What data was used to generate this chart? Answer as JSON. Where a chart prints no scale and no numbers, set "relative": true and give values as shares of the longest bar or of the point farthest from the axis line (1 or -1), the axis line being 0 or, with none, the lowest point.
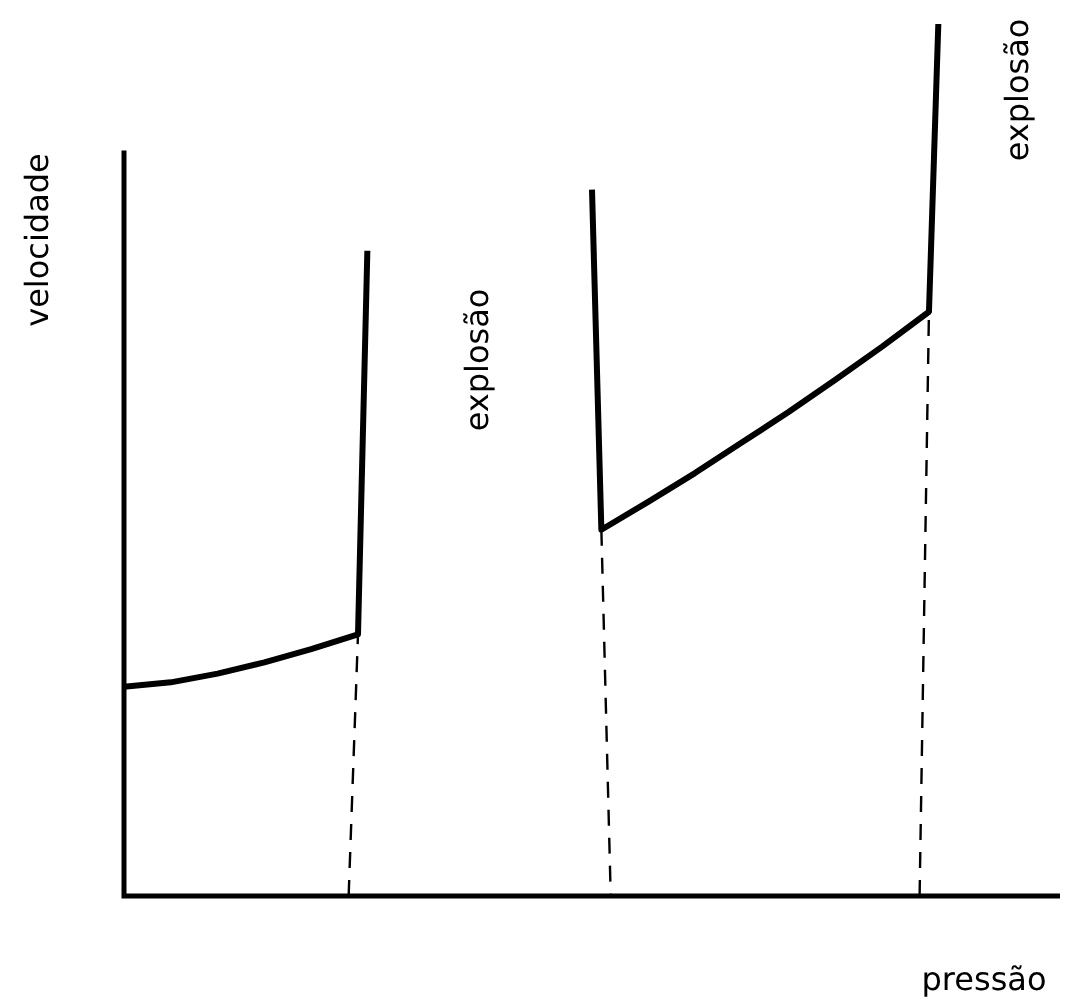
{
  "chart_data": {
    "type": "line",
    "relative": true,
    "xlabel": "pressão",
    "ylabel": "velocidade",
    "legend": false,
    "marker": "none",
    "line_style": "solid",
    "annotations": [
      "explosão",
      "explosão"
    ],
    "categories": [
      null,
      null,
      null,
      null,
      null,
      null,
      null,
      null,
      null,
      null,
      null,
      null,
      null,
      null,
      null,
      null,
      null,
      null,
      null,
      null,
      null,
      null,
      null,
      null,
      null,
      null,
      null,
      null,
      null,
      null,
      null,
      null,
      null,
      null,
      null,
      null,
      null,
      null,
      null,
      null,
      null,
      null,
      null,
      null,
      null,
      null,
      null,
      null,
      null,
      null,
      null,
      null,
      null,
      null,
      null,
      null,
      null,
      null,
      null,
      null,
      null,
      null,
      null,
      null,
      null,
      null,
      null,
      null,
      null,
      null,
      null,
      null,
      null,
      null,
      null,
      null,
      null,
      null,
      null,
      null,
      null,
      null,
      null,
      null,
      null,
      null,
      null,
      null,
      null,
      null,
      null,
      null,
      null,
      null,
      null,
      null,
      null,
      null,
      null,
      null,
      null
    ],
    "series": [
      {
        "color": "#000000",
        "values": [
          0.24,
          null,
          null,
          null,
          null,
          0.245,
          null,
          null,
          null,
          null,
          0.255,
          null,
          null,
          null,
          null,
          0.268,
          null,
          null,
          null,
          null,
          0.283,
          null,
          null,
          null,
          null,
          0.3,
          0.74,
          null,
          null,
          null,
          null,
          null,
          null,
          null,
          null,
          null,
          null,
          null,
          null,
          null,
          null,
          null,
          null,
          null,
          null,
          null,
          null,
          null,
          null,
          null,
          null,
          null,
          null,
          null,
          null,
          null,
          null,
          null,
          null,
          null,
          null,
          null,
          null,
          null,
          null,
          null,
          null,
          null,
          null,
          null,
          null,
          null,
          null,
          null,
          null,
          null,
          null,
          null,
          null,
          null,
          null,
          null,
          null,
          null,
          null,
          null,
          null,
          null,
          null,
          null,
          null,
          null,
          null,
          null,
          null,
          null,
          null,
          null,
          null,
          null,
          null
        ]
      },
      {
        "color": "#000000",
        "values": [
          null,
          null,
          null,
          null,
          null,
          null,
          null,
          null,
          null,
          null,
          null,
          null,
          null,
          null,
          null,
          null,
          null,
          null,
          null,
          null,
          null,
          null,
          null,
          null,
          null,
          null,
          null,
          null,
          null,
          null,
          null,
          null,
          null,
          null,
          null,
          null,
          null,
          null,
          null,
          null,
          null,
          null,
          null,
          null,
          null,
          null,
          null,
          null,
          null,
          null,
          0.81,
          0.42,
          null,
          null,
          null,
          null,
          0.452,
          null,
          null,
          null,
          null,
          0.485,
          null,
          null,
          null,
          null,
          0.52,
          null,
          null,
          null,
          null,
          0.555,
          null,
          null,
          null,
          null,
          0.592,
          null,
          null,
          null,
          null,
          0.63,
          null,
          null,
          null,
          null,
          0.67,
          1,
          null,
          null,
          null,
          null,
          null,
          null,
          null,
          null,
          null,
          null,
          null,
          null,
          null
        ]
      },
      {
        "color": "#000000",
        "line_style": "dashed",
        "values": [
          null,
          null,
          null,
          null,
          null,
          null,
          null,
          null,
          null,
          null,
          null,
          null,
          null,
          null,
          null,
          null,
          null,
          null,
          null,
          null,
          null,
          null,
          null,
          null,
          0,
          0.3,
          null,
          null,
          null,
          null,
          null,
          null,
          null,
          null,
          null,
          null,
          null,
          null,
          null,
          null,
          null,
          null,
          null,
          null,
          null,
          null,
          null,
          null,
          null,
          null,
          null,
          null,
          null,
          null,
          null,
          null,
          null,
          null,
          null,
          null,
          null,
          null,
          null,
          null,
          null,
          null,
          null,
          null,
          null,
          null,
          null,
          null,
          null,
          null,
          null,
          null,
          null,
          null,
          null,
          null,
          null,
          null,
          null,
          null,
          null,
          null,
          null,
          null,
          null,
          null,
          null,
          null,
          null,
          null,
          null,
          null,
          null,
          null,
          null,
          null,
          null
        ]
      },
      {
        "color": "#000000",
        "line_style": "dashed",
        "values": [
          null,
          null,
          null,
          null,
          null,
          null,
          null,
          null,
          null,
          null,
          null,
          null,
          null,
          null,
          null,
          null,
          null,
          null,
          null,
          null,
          null,
          null,
          null,
          null,
          null,
          null,
          null,
          null,
          null,
          null,
          null,
          null,
          null,
          null,
          null,
          null,
          null,
          null,
          null,
          null,
          null,
          null,
          null,
          null,
          null,
          null,
          null,
          null,
          null,
          null,
          null,
          0.42,
          0,
          null,
          null,
          null,
          null,
          null,
          null,
          null,
          null,
          null,
          null,
          null,
          null,
          null,
          null,
          null,
          null,
          null,
          null,
          null,
          null,
          null,
          null,
          null,
          null,
          null,
          null,
          null,
          null,
          null,
          null,
          null,
          null,
          null,
          null,
          null,
          null,
          null,
          null,
          null,
          null,
          null,
          null,
          null,
          null,
          null,
          null,
          null,
          null
        ]
      },
      {
        "color": "#000000",
        "line_style": "dashed",
        "values": [
          null,
          null,
          null,
          null,
          null,
          null,
          null,
          null,
          null,
          null,
          null,
          null,
          null,
          null,
          null,
          null,
          null,
          null,
          null,
          null,
          null,
          null,
          null,
          null,
          null,
          null,
          null,
          null,
          null,
          null,
          null,
          null,
          null,
          null,
          null,
          null,
          null,
          null,
          null,
          null,
          null,
          null,
          null,
          null,
          null,
          null,
          null,
          null,
          null,
          null,
          null,
          null,
          null,
          null,
          null,
          null,
          null,
          null,
          null,
          null,
          null,
          null,
          null,
          null,
          null,
          null,
          null,
          null,
          null,
          null,
          null,
          null,
          null,
          null,
          null,
          null,
          null,
          null,
          null,
          null,
          null,
          null,
          null,
          null,
          null,
          0,
          0.67,
          null,
          null,
          null,
          null,
          null,
          null,
          null,
          null,
          null,
          null,
          null,
          null,
          null,
          null
        ]
      }
    ]
  }
}
